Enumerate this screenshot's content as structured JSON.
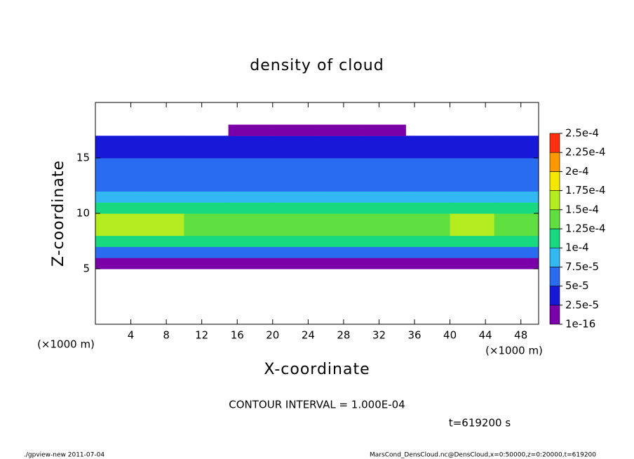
{
  "chart_data": {
    "type": "contour",
    "title": "density of cloud",
    "xlabel": "X-coordinate",
    "ylabel": "Z-coordinate",
    "x_unit": "(×1000 m)",
    "annotations": [
      "CONTOUR INTERVAL = 1.000E-04",
      "t=619200 s"
    ],
    "footer_left": "./gpview-new   2011-07-04",
    "footer_right": "MarsCond_DensCloud.nc@DensCloud,x=0:50000,z=0:20000,t=619200",
    "xlim": [
      0,
      50
    ],
    "ylim": [
      0,
      20
    ],
    "xticks": [
      4,
      8,
      12,
      16,
      20,
      24,
      28,
      32,
      36,
      40,
      44,
      48
    ],
    "yticks": [
      5,
      10,
      15
    ],
    "x_edges": [
      0,
      5,
      10,
      15,
      20,
      25,
      30,
      35,
      40,
      45,
      50
    ],
    "z_edges": [
      5,
      6,
      7,
      8,
      9,
      10,
      11,
      12,
      13,
      14,
      15,
      16,
      17,
      18
    ],
    "values": [
      [
        2e-05,
        2e-05,
        2e-05,
        2e-05,
        2e-05,
        2e-05,
        2e-05,
        2e-05,
        2e-05,
        2e-05
      ],
      [
        7e-05,
        7e-05,
        7e-05,
        7e-05,
        7e-05,
        7e-05,
        7e-05,
        7e-05,
        7e-05,
        7e-05
      ],
      [
        0.00012,
        0.00012,
        0.00012,
        0.000115,
        0.00011,
        0.000105,
        0.000105,
        0.00011,
        0.00012,
        0.00012
      ],
      [
        0.000155,
        0.000155,
        0.000145,
        0.00014,
        0.000135,
        0.00013,
        0.00013,
        0.00014,
        0.00015,
        0.000145
      ],
      [
        0.00016,
        0.000155,
        0.000145,
        0.00014,
        0.000135,
        0.00013,
        0.00013,
        0.00014,
        0.00015,
        0.000145
      ],
      [
        0.00012,
        0.00012,
        0.000115,
        0.00011,
        0.00011,
        0.00011,
        0.00011,
        0.000115,
        0.00012,
        0.00012
      ],
      [
        9e-05,
        9e-05,
        8.5e-05,
        8.5e-05,
        8e-05,
        8e-05,
        8.5e-05,
        8.5e-05,
        9e-05,
        9e-05
      ],
      [
        7e-05,
        7e-05,
        7e-05,
        6.5e-05,
        6e-05,
        6e-05,
        6.5e-05,
        7e-05,
        7e-05,
        7e-05
      ],
      [
        6e-05,
        6e-05,
        6e-05,
        6e-05,
        5.5e-05,
        5.5e-05,
        6e-05,
        6e-05,
        6.5e-05,
        6e-05
      ],
      [
        5.5e-05,
        5.5e-05,
        5.5e-05,
        5e-05,
        5e-05,
        5e-05,
        5e-05,
        5.5e-05,
        5.5e-05,
        5.5e-05
      ],
      [
        4e-05,
        4e-05,
        4e-05,
        4e-05,
        4e-05,
        4e-05,
        4e-05,
        4e-05,
        4e-05,
        4e-05
      ],
      [
        3e-05,
        3e-05,
        3e-05,
        3e-05,
        3e-05,
        3e-05,
        3e-05,
        3e-05,
        3e-05,
        3e-05
      ],
      [
        null,
        null,
        null,
        1e-05,
        1e-05,
        1e-05,
        1e-05,
        null,
        null,
        null
      ]
    ],
    "levels": [
      {
        "value": 1e-16,
        "label": "1e-16"
      },
      {
        "value": 2.5e-05,
        "label": "2.5e-5"
      },
      {
        "value": 5e-05,
        "label": "5e-5"
      },
      {
        "value": 7.5e-05,
        "label": "7.5e-5"
      },
      {
        "value": 0.0001,
        "label": "1e-4"
      },
      {
        "value": 0.000125,
        "label": "1.25e-4"
      },
      {
        "value": 0.00015,
        "label": "1.5e-4"
      },
      {
        "value": 0.000175,
        "label": "1.75e-4"
      },
      {
        "value": 0.0002,
        "label": "2e-4"
      },
      {
        "value": 0.000225,
        "label": "2.25e-4"
      },
      {
        "value": 0.00025,
        "label": "2.5e-4"
      }
    ],
    "colors": [
      "#7a00a8",
      "#1818d8",
      "#2a6cf0",
      "#34b8f4",
      "#18d880",
      "#60e040",
      "#b4ec20",
      "#f4e800",
      "#ff9800",
      "#ff3010"
    ]
  }
}
